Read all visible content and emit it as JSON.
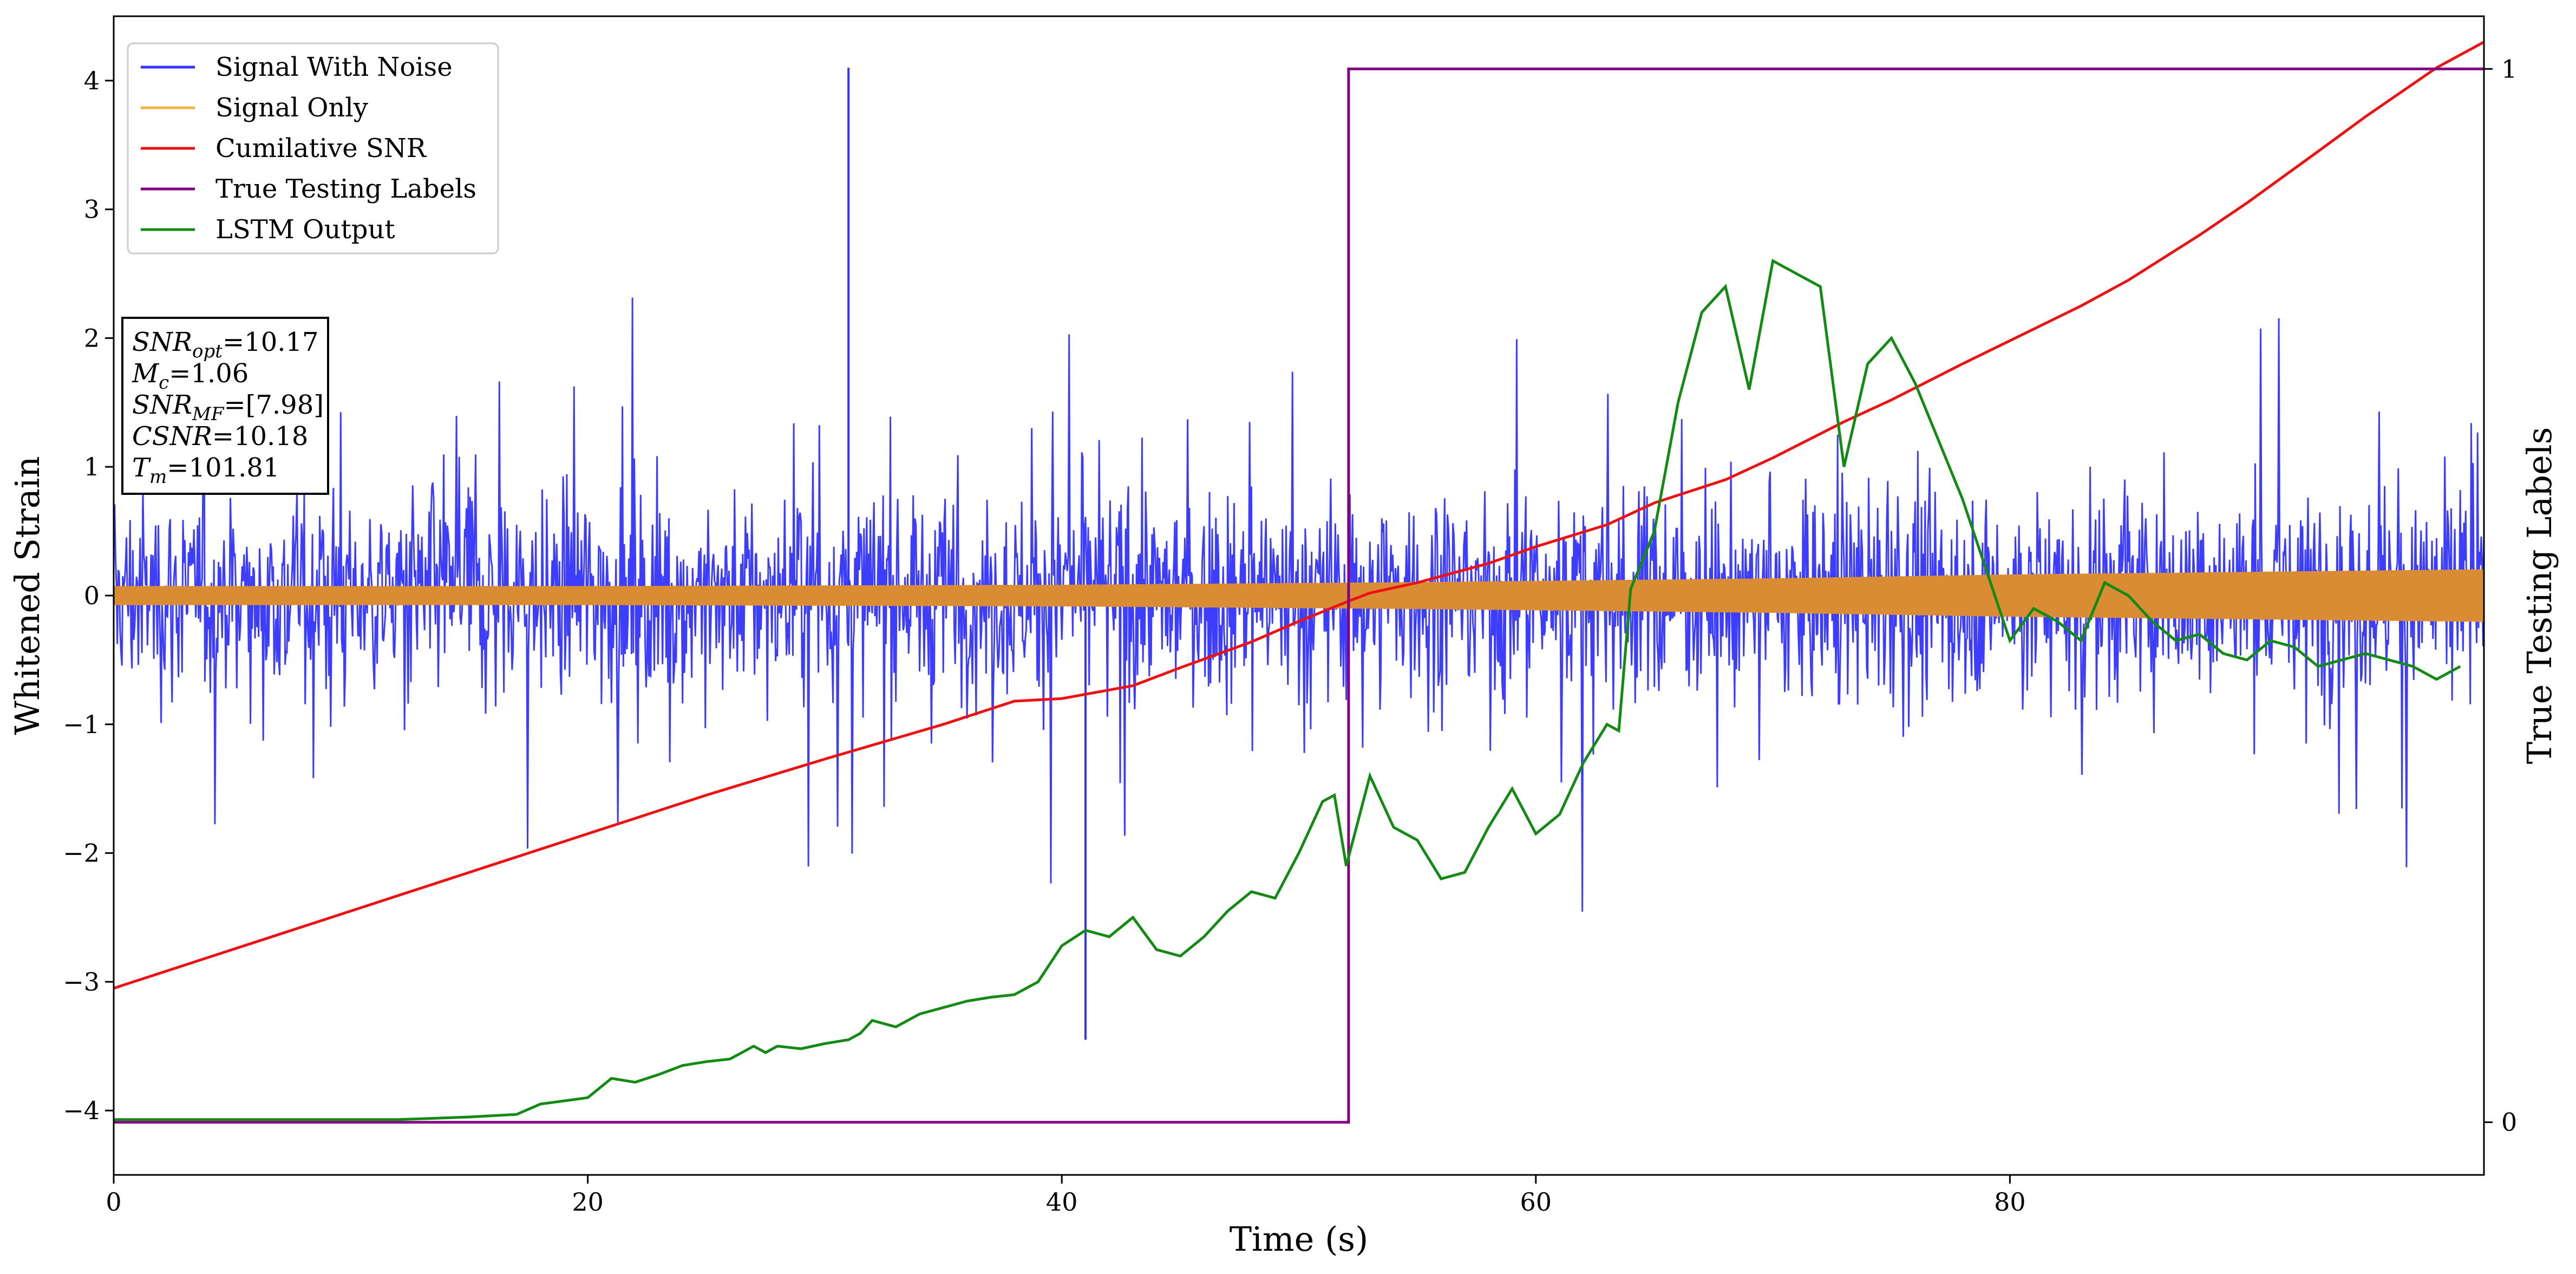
{
  "chart_data": {
    "type": "line",
    "title": "",
    "xlabel": "Time (s)",
    "ylabel": "Whitened Strain",
    "y2label": "True Testing Labels",
    "xlim": [
      0,
      100
    ],
    "ylim": [
      -4.5,
      4.5
    ],
    "y2lim": [
      -0.05,
      1.05
    ],
    "x_ticks": [
      0,
      20,
      40,
      60,
      80
    ],
    "x_tick_labels": [
      "0",
      "20",
      "40",
      "60",
      "80"
    ],
    "y_ticks": [
      -4,
      -3,
      -2,
      -1,
      0,
      1,
      2,
      3,
      4
    ],
    "y_tick_labels": [
      "−4",
      "−3",
      "−2",
      "−1",
      "0",
      "1",
      "2",
      "3",
      "4"
    ],
    "y2_ticks": [
      0,
      1
    ],
    "y2_tick_labels": [
      "0",
      "1"
    ],
    "grid": false,
    "legend_position": "top-left",
    "legend": [
      {
        "label": "Signal With Noise",
        "color": "#3333ff"
      },
      {
        "label": "Signal Only",
        "color": "#f5b13f"
      },
      {
        "label": "Cumilative SNR",
        "color": "#ee1111"
      },
      {
        "label": "True Testing Labels",
        "color": "#800080"
      },
      {
        "label": "LSTM Output",
        "color": "#138a13"
      }
    ],
    "annotation": {
      "position": "left",
      "lines": [
        {
          "base": "SNR",
          "sub": "opt",
          "value": "=10.17"
        },
        {
          "base": "M",
          "sub": "c",
          "value": "=1.06"
        },
        {
          "base": "SNR",
          "sub": "MF",
          "value": "=[7.98]"
        },
        {
          "base": "CSNR",
          "sub": "",
          "value": "=10.18"
        },
        {
          "base": "T",
          "sub": "m",
          "value": "=101.81"
        }
      ]
    },
    "series": [
      {
        "name": "Signal With Noise",
        "color": "#3333ff",
        "description_type": "noise_band",
        "x_range": [
          0,
          100
        ],
        "typical_range": [
          -1.5,
          1.5
        ],
        "max": 4.1,
        "max_at": 31,
        "min": -3.45,
        "min_at": 41
      },
      {
        "name": "Signal Only",
        "color": "#d98c33",
        "description_type": "envelope",
        "x": [
          0,
          20,
          40,
          55,
          60,
          70,
          80,
          90,
          100
        ],
        "amplitude": [
          0.07,
          0.07,
          0.08,
          0.1,
          0.11,
          0.13,
          0.16,
          0.18,
          0.2
        ]
      },
      {
        "name": "Cumilative SNR",
        "color": "#ee1111",
        "x": [
          0,
          5,
          10,
          15,
          20,
          25,
          30,
          35,
          38,
          40,
          43,
          45,
          48,
          50,
          52,
          53,
          55,
          58,
          60,
          63,
          65,
          68,
          70,
          73,
          75,
          78,
          80,
          83,
          85,
          88,
          90,
          93,
          95,
          98,
          100
        ],
        "y": [
          -3.05,
          -2.75,
          -2.45,
          -2.15,
          -1.85,
          -1.55,
          -1.27,
          -1.0,
          -0.82,
          -0.8,
          -0.7,
          -0.56,
          -0.36,
          -0.2,
          -0.05,
          0.02,
          0.1,
          0.25,
          0.38,
          0.55,
          0.72,
          0.9,
          1.07,
          1.35,
          1.52,
          1.8,
          1.98,
          2.25,
          2.45,
          2.8,
          3.05,
          3.45,
          3.72,
          4.1,
          4.3
        ]
      },
      {
        "name": "True Testing Labels",
        "color": "#800080",
        "axis": "right",
        "x": [
          0,
          52.1,
          52.1,
          100
        ],
        "y": [
          0,
          0,
          1,
          1
        ]
      },
      {
        "name": "LSTM Output",
        "color": "#138a13",
        "x": [
          0,
          12,
          15,
          17,
          18,
          20,
          21,
          22,
          23,
          24,
          25,
          26,
          27,
          27.5,
          28,
          29,
          30,
          31,
          31.5,
          32,
          33,
          34,
          35,
          36,
          37,
          38,
          39,
          40,
          41,
          42,
          43,
          44,
          45,
          46,
          47,
          48,
          49,
          50,
          51,
          51.5,
          52,
          53,
          54,
          55,
          56,
          57,
          58,
          59,
          60,
          61,
          62,
          63,
          63.5,
          64,
          65,
          66,
          67,
          68,
          69,
          70,
          71,
          72,
          73,
          74,
          75,
          76,
          77,
          78,
          79,
          80,
          81,
          82,
          83,
          84,
          85,
          86,
          87,
          88,
          89,
          90,
          91,
          92,
          93,
          94,
          95,
          96,
          97,
          98,
          99
        ],
        "y": [
          -4.07,
          -4.07,
          -4.05,
          -4.03,
          -3.95,
          -3.9,
          -3.75,
          -3.78,
          -3.72,
          -3.65,
          -3.62,
          -3.6,
          -3.5,
          -3.55,
          -3.5,
          -3.52,
          -3.48,
          -3.45,
          -3.4,
          -3.3,
          -3.35,
          -3.25,
          -3.2,
          -3.15,
          -3.12,
          -3.1,
          -3.0,
          -2.72,
          -2.6,
          -2.65,
          -2.5,
          -2.75,
          -2.8,
          -2.65,
          -2.45,
          -2.3,
          -2.35,
          -2.0,
          -1.6,
          -1.55,
          -2.1,
          -1.4,
          -1.8,
          -1.9,
          -2.2,
          -2.15,
          -1.8,
          -1.5,
          -1.85,
          -1.7,
          -1.3,
          -1.0,
          -1.05,
          0.05,
          0.5,
          1.5,
          2.2,
          2.4,
          1.6,
          2.6,
          2.5,
          2.4,
          1.0,
          1.8,
          2.0,
          1.65,
          1.2,
          0.75,
          0.2,
          -0.35,
          -0.1,
          -0.2,
          -0.35,
          0.1,
          0.0,
          -0.2,
          -0.35,
          -0.3,
          -0.45,
          -0.5,
          -0.35,
          -0.4,
          -0.55,
          -0.5,
          -0.45,
          -0.5,
          -0.55,
          -0.65,
          -0.55
        ]
      }
    ]
  }
}
